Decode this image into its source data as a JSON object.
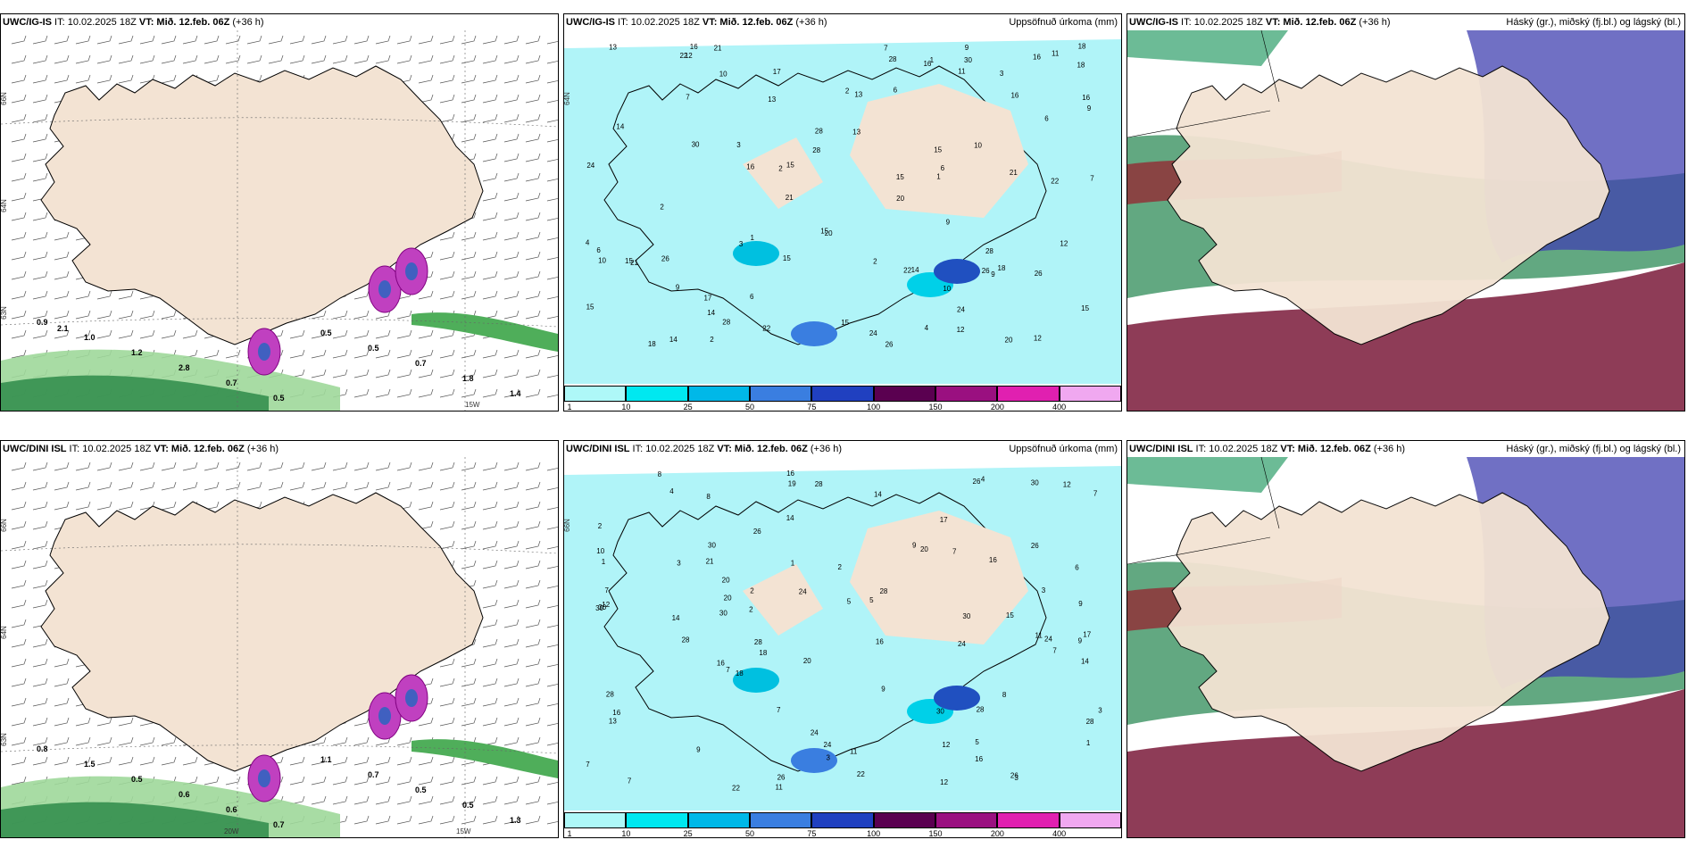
{
  "panels": [
    {
      "id": "p1",
      "model": "UWC/IG-IS",
      "it": "IT: 10.02.2025 18Z",
      "vt_label": "VT:",
      "vt": "Mið. 12.feb. 06Z",
      "lead": "(+36 h)",
      "right_title": "",
      "kind": "precip_type",
      "lat_labels": [
        "66N",
        "64N",
        "63N"
      ],
      "lon_labels": [
        "15W"
      ]
    },
    {
      "id": "p2",
      "model": "UWC/IG-IS",
      "it": "IT: 10.02.2025 18Z",
      "vt_label": "VT:",
      "vt": "Mið. 12.feb. 06Z",
      "lead": "(+36 h)",
      "right_title": "Uppsöfnuð úrkoma (mm)",
      "kind": "accum",
      "lat_labels": [
        "64N"
      ],
      "lon_labels": []
    },
    {
      "id": "p3",
      "model": "UWC/IG-IS",
      "it": "IT: 10.02.2025 18Z",
      "vt_label": "VT:",
      "vt": "Mið. 12.feb. 06Z",
      "lead": "(+36 h)",
      "right_title": "Háský (gr.), miðský (fj.bl.) og lágský (bl.)",
      "kind": "clouds",
      "lat_labels": [],
      "lon_labels": []
    },
    {
      "id": "p4",
      "model": "UWC/DINI ISL",
      "it": "IT: 10.02.2025 18Z",
      "vt_label": "VT:",
      "vt": "Mið. 12.feb. 06Z",
      "lead": "(+36 h)",
      "right_title": "",
      "kind": "precip_type",
      "lat_labels": [
        "66N",
        "64N",
        "63N"
      ],
      "lon_labels": [
        "20W",
        "15W"
      ]
    },
    {
      "id": "p5",
      "model": "UWC/DINI ISL",
      "it": "IT: 10.02.2025 18Z",
      "vt_label": "VT:",
      "vt": "Mið. 12.feb. 06Z",
      "lead": "(+36 h)",
      "right_title": "Uppsöfnuð úrkoma (mm)",
      "kind": "accum",
      "lat_labels": [
        "66N"
      ],
      "lon_labels": []
    },
    {
      "id": "p6",
      "model": "UWC/DINI ISL",
      "it": "IT: 10.02.2025 18Z",
      "vt_label": "VT:",
      "vt": "Mið. 12.feb. 06Z",
      "lead": "(+36 h)",
      "right_title": "Háský (gr.), miðský (fj.bl.) og lágský (bl.)",
      "kind": "clouds",
      "lat_labels": [],
      "lon_labels": []
    }
  ],
  "colorbar": {
    "ticks": [
      "1",
      "10",
      "25",
      "50",
      "75",
      "100",
      "150",
      "200",
      "400"
    ],
    "colors": [
      "#aef8f8",
      "#00e8f0",
      "#00b8e8",
      "#3a7ee0",
      "#2040c0",
      "#5a0050",
      "#9a1080",
      "#e020b0",
      "#f0a8f0"
    ]
  },
  "precip_labels_top": [
    "0.9",
    "1.0",
    "1.2",
    "2.8",
    "0.7",
    "0.5",
    "0.5",
    "0.5",
    "0.7",
    "1.8",
    "1.4",
    "2.1"
  ],
  "precip_labels_bottom": [
    "0.8",
    "1.5",
    "0.5",
    "0.6",
    "0.6",
    "0.7",
    "1.1",
    "0.7",
    "0.5",
    "0.5",
    "1.3"
  ],
  "accum_numbers": [
    "4",
    "2",
    "1",
    "3",
    "5",
    "7",
    "6",
    "8",
    "9",
    "10",
    "11",
    "12",
    "13",
    "14",
    "15",
    "16",
    "17",
    "18",
    "19",
    "20",
    "21",
    "22",
    "24",
    "26",
    "28",
    "30"
  ],
  "colors": {
    "land": "#f3e3d3",
    "sea": "#ffffff",
    "accum_light": "#b0f4f8",
    "high_cloud": "#2e8b57",
    "mid_cloud": "#7a1a3a",
    "low_cloud": "#4040b0"
  }
}
